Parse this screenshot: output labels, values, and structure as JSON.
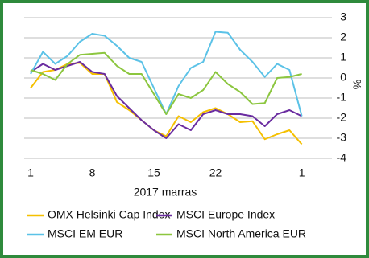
{
  "chart_data": {
    "type": "line",
    "categories": [
      "1",
      null,
      null,
      null,
      null,
      "8",
      null,
      null,
      null,
      null,
      "15",
      null,
      null,
      null,
      null,
      "22",
      null,
      null,
      null,
      null,
      null,
      null,
      "1"
    ],
    "x_label": "2017 marras",
    "y_label": "%",
    "ylim": [
      -4,
      3
    ],
    "yticks": [
      -4,
      -3,
      -2,
      -1,
      0,
      1,
      2,
      3
    ],
    "grid": true,
    "series": [
      {
        "name": "OMX Helsinki Cap Index",
        "color": "#f5c000",
        "values": [
          -0.5,
          0.3,
          0.4,
          0.7,
          0.75,
          0.2,
          0.2,
          -1.2,
          -1.6,
          -2.1,
          -2.6,
          -2.9,
          -1.9,
          -2.2,
          -1.7,
          -1.5,
          -1.8,
          -2.2,
          -2.15,
          -3.05,
          -2.8,
          -2.6,
          -3.3
        ]
      },
      {
        "name": "MSCI Europe Index",
        "color": "#6a2ca0",
        "values": [
          0.3,
          0.7,
          0.4,
          0.6,
          0.8,
          0.3,
          0.2,
          -0.9,
          -1.5,
          -2.1,
          -2.6,
          -3.0,
          -2.3,
          -2.6,
          -1.8,
          -1.6,
          -1.8,
          -1.8,
          -1.9,
          -2.4,
          -1.8,
          -1.6,
          -1.9
        ]
      },
      {
        "name": "MSCI EM EUR",
        "color": "#5bc2e7",
        "values": [
          0.2,
          1.3,
          0.7,
          1.1,
          1.8,
          2.2,
          2.1,
          1.6,
          1.0,
          0.8,
          -0.5,
          -1.8,
          -0.4,
          0.5,
          0.8,
          2.3,
          2.25,
          1.4,
          0.8,
          0.05,
          0.7,
          0.4,
          -1.9
        ]
      },
      {
        "name": "MSCI North America EUR",
        "color": "#8cc63f",
        "values": [
          0.4,
          0.2,
          -0.1,
          0.7,
          1.15,
          1.2,
          1.25,
          0.6,
          0.2,
          0.2,
          -0.8,
          -1.8,
          -0.8,
          -1.0,
          -0.6,
          0.3,
          -0.3,
          -0.7,
          -1.3,
          -1.25,
          0.0,
          0.05,
          0.2
        ]
      }
    ]
  }
}
